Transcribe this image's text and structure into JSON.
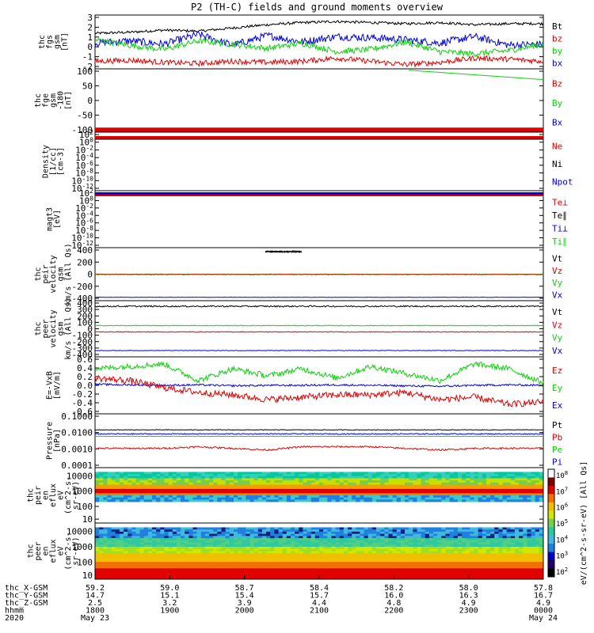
{
  "title": "P2 (TH-C) fields and ground moments overview",
  "colors": {
    "black": "#000000",
    "red": "#e00000",
    "green": "#10d010",
    "blue": "#0000e0",
    "grey": "#666666"
  },
  "chart_data": [
    {
      "type": "line",
      "id": "fgs",
      "ylabel": [
        "thc",
        "fgs",
        "gsm",
        "[nT]"
      ],
      "ylim": [
        -2,
        3
      ],
      "yticks": [
        "3",
        "2",
        "1",
        "0",
        "-1",
        "-2"
      ],
      "legend": [
        {
          "name": "Bt",
          "color": "#000000"
        },
        {
          "name": "bz",
          "color": "#e00000"
        },
        {
          "name": "by",
          "color": "#10d010"
        },
        {
          "name": "bx",
          "color": "#0000e0"
        }
      ],
      "series": [
        {
          "name": "Bt",
          "color": "#000000",
          "base": [
            1.3,
            1.4,
            1.6,
            1.5,
            1.8,
            2.1,
            2.3,
            2.4,
            2.3,
            2.2,
            2.3,
            2.1,
            2.2,
            2.2
          ],
          "noise": 0.12
        },
        {
          "name": "bx",
          "color": "#0000e0",
          "base": [
            0.4,
            0.6,
            0.3,
            1.2,
            0.2,
            1.1,
            0.5,
            1.0,
            0.9,
            0.7,
            0.4,
            1.0,
            0.2,
            0.3
          ],
          "noise": 0.35
        },
        {
          "name": "by",
          "color": "#10d010",
          "base": [
            0.7,
            0.2,
            -0.2,
            0.6,
            0.3,
            -0.1,
            0.4,
            -0.4,
            -0.2,
            0.5,
            -0.4,
            -0.6,
            -0.3,
            0.3
          ],
          "noise": 0.28
        },
        {
          "name": "bz",
          "color": "#e00000",
          "base": [
            -1.3,
            -1.2,
            -1.4,
            -1.5,
            -1.3,
            -1.4,
            -1.3,
            -1.0,
            -1.3,
            -1.6,
            -1.4,
            -1.0,
            -1.1,
            -1.3
          ],
          "noise": 0.25
        }
      ]
    },
    {
      "type": "line",
      "id": "fge",
      "ylabel": [
        "thc",
        "fge",
        "gsm",
        "-180",
        "[nT]"
      ],
      "ylim": [
        -130,
        105
      ],
      "yticks": [
        "100",
        "50",
        "0",
        "-50",
        "-100"
      ],
      "legend": [
        {
          "name": "Bz",
          "color": "#e00000"
        },
        {
          "name": "By",
          "color": "#10d010"
        },
        {
          "name": "Bx",
          "color": "#0000e0"
        }
      ],
      "series": [
        {
          "name": "By",
          "color": "#10d010",
          "x": [
            0.7,
            1.0
          ],
          "y": [
            100,
            65
          ]
        },
        {
          "name": "Bz",
          "color": "#e00000",
          "x": [
            0.0,
            1.0
          ],
          "y": [
            -122,
            -122
          ],
          "band": 6
        }
      ]
    },
    {
      "type": "line",
      "id": "density",
      "log": true,
      "ylabel": [
        "Density",
        "[1/cc]",
        "[cm-3]"
      ],
      "yticks": [
        "10^2",
        "10^0",
        "10^-2",
        "10^-4",
        "10^-6",
        "10^-8",
        "10^-10",
        "10^-12"
      ],
      "legend": [
        {
          "name": "Ne",
          "color": "#e00000"
        },
        {
          "name": "Ni",
          "color": "#000000"
        },
        {
          "name": "Npot",
          "color": "#0000e0"
        }
      ]
    },
    {
      "type": "line",
      "id": "temp",
      "log": true,
      "ylabel": [
        "magt3",
        "[eV]"
      ],
      "yticks": [
        "10^2",
        "10^0",
        "10^-2",
        "10^-4",
        "10^-6",
        "10^-8",
        "10^-10",
        "10^-12"
      ],
      "legend": [
        {
          "name": "Te⊥",
          "color": "#e00000"
        },
        {
          "name": "Te∥",
          "color": "#000000"
        },
        {
          "name": "Ti⊥",
          "color": "#0000e0"
        },
        {
          "name": "Ti∥",
          "color": "#10d010"
        }
      ]
    },
    {
      "type": "line",
      "id": "peir",
      "ylabel": [
        "thc",
        "peir",
        "velocity",
        "gsm",
        "km/s (All Qs)"
      ],
      "ylim": [
        -430,
        430
      ],
      "yticks": [
        "400",
        "200",
        "0",
        "-200",
        "-400"
      ],
      "legend": [
        {
          "name": "Vt",
          "color": "#000000"
        },
        {
          "name": "Vz",
          "color": "#e00000"
        },
        {
          "name": "Vy",
          "color": "#10d010"
        },
        {
          "name": "Vx",
          "color": "#0000e0"
        }
      ],
      "series": [
        {
          "name": "Vt",
          "color": "#000000",
          "base": [
            365,
            365
          ],
          "x": [
            0.38,
            0.46
          ],
          "noise": 4
        },
        {
          "name": "Vy",
          "color": "#10d010",
          "base": [
            0,
            0
          ],
          "noise": 3
        },
        {
          "name": "Vz",
          "color": "#e00000",
          "base": [
            -5,
            -5
          ],
          "noise": 4
        },
        {
          "name": "Vx",
          "color": "#0000e0",
          "base": [
            -375,
            -375
          ],
          "noise": 3
        }
      ]
    },
    {
      "type": "line",
      "id": "peer",
      "ylabel": [
        "thc",
        "peer",
        "velocity",
        "gsm",
        "km/s (All Qs)"
      ],
      "ylim": [
        -400,
        400
      ],
      "yticks": [
        "400",
        "300",
        "200",
        "100",
        "0",
        "-100",
        "-200",
        "-300",
        "-400"
      ],
      "legend": [
        {
          "name": "Vt",
          "color": "#000000"
        },
        {
          "name": "Vz",
          "color": "#e00000"
        },
        {
          "name": "Vy",
          "color": "#10d010"
        },
        {
          "name": "Vx",
          "color": "#0000e0"
        }
      ],
      "series": [
        {
          "name": "Vt",
          "color": "#000000",
          "base": [
            320,
            320
          ],
          "noise": 10
        },
        {
          "name": "Vy",
          "color": "#10d010",
          "base": [
            45,
            45
          ],
          "noise": 5
        },
        {
          "name": "Vz",
          "color": "#e00000",
          "base": [
            -45,
            -45
          ],
          "noise": 5
        },
        {
          "name": "Vx",
          "color": "#0000e0",
          "base": [
            -310,
            -310
          ],
          "noise": 4
        }
      ]
    },
    {
      "type": "line",
      "id": "efield",
      "ylabel": [
        "E=-VxB",
        "[mV/m]"
      ],
      "ylim": [
        -0.6,
        0.6
      ],
      "yticks": [
        "0.6",
        "0.4",
        "0.2",
        "0.0",
        "-0.2",
        "-0.4",
        "-0.6"
      ],
      "legend": [
        {
          "name": "Ez",
          "color": "#e00000"
        },
        {
          "name": "Ey",
          "color": "#10d010"
        },
        {
          "name": "Ex",
          "color": "#0000e0"
        }
      ],
      "series": [
        {
          "name": "Ex",
          "color": "#0000e0",
          "base": [
            0.02,
            0.01,
            0.0,
            0.01,
            -0.01,
            0.0,
            0.0,
            0.01,
            0.0,
            -0.01,
            -0.02,
            0.0,
            0.01,
            0.0
          ],
          "noise": 0.02
        },
        {
          "name": "Ey",
          "color": "#10d010",
          "base": [
            0.35,
            0.4,
            0.45,
            0.1,
            0.35,
            0.2,
            0.35,
            0.15,
            0.4,
            0.25,
            0.1,
            0.45,
            0.35,
            0.05
          ],
          "noise": 0.06
        },
        {
          "name": "Ez",
          "color": "#e00000",
          "base": [
            0.15,
            0.1,
            -0.05,
            -0.15,
            -0.2,
            -0.3,
            -0.25,
            -0.2,
            -0.2,
            -0.15,
            -0.3,
            -0.25,
            -0.4,
            -0.35
          ],
          "noise": 0.07
        }
      ]
    },
    {
      "type": "line",
      "id": "pressure",
      "log": true,
      "ylabel": [
        "Pressure",
        "[nPa]"
      ],
      "ylim_log": [
        -4.2,
        -0.85
      ],
      "yticks": [
        "0.1000",
        "0.0100",
        "0.0010",
        "0.0001"
      ],
      "legend": [
        {
          "name": "Pt",
          "color": "#000000"
        },
        {
          "name": "Pb",
          "color": "#e00000"
        },
        {
          "name": "Pe",
          "color": "#10d010"
        },
        {
          "name": "Pi",
          "color": "#0000e0"
        }
      ],
      "series": [
        {
          "name": "Pt",
          "color": "#000000",
          "base": [
            -1.85,
            -1.85
          ],
          "noise": 0.02
        },
        {
          "name": "Pi",
          "color": "#0000e0",
          "base": [
            -2.1,
            -2.1
          ],
          "noise": 0.03
        },
        {
          "name": "Pe",
          "color": "#10d010",
          "base": [
            -2.25,
            -2.25
          ],
          "noise": 0.01
        },
        {
          "name": "Pb",
          "color": "#e00000",
          "base": [
            -3.0,
            -3.0,
            -3.0,
            -2.9,
            -3.0,
            -3.1,
            -2.9,
            -2.9,
            -2.9,
            -3.0,
            -3.1,
            -3.0,
            -3.0,
            -3.0
          ],
          "noise": 0.05
        }
      ]
    },
    {
      "type": "heatmap",
      "id": "peir_en",
      "ylabel": [
        "thc",
        "peir",
        "en",
        "eflux",
        "eV",
        "(cm^2-s-",
        "sr-eV)"
      ],
      "yticks": [
        "10000",
        "1000",
        "100",
        "10"
      ]
    },
    {
      "type": "heatmap",
      "id": "peer_en",
      "ylabel": [
        "thc",
        "peer",
        "en",
        "eflux",
        "eV",
        "(cm^2-s-",
        "sr-eV)"
      ],
      "yticks": [
        "10000",
        "1000",
        "100",
        "10"
      ]
    }
  ],
  "colorbar": {
    "ticks": [
      "10^8",
      "10^7",
      "10^6",
      "10^5",
      "10^4",
      "10^3",
      "10^2"
    ],
    "label": "eV/(cm^2-s-sr-eV) [All Qs]"
  },
  "xaxis": {
    "rows": [
      {
        "label": "thc_X-GSM",
        "values": [
          "59.2",
          "59.0",
          "58.7",
          "58.4",
          "58.2",
          "58.0",
          "57.8"
        ]
      },
      {
        "label": "thc_Y-GSM",
        "values": [
          "14.7",
          "15.1",
          "15.4",
          "15.7",
          "16.0",
          "16.3",
          "16.7"
        ]
      },
      {
        "label": "thc_Z-GSM",
        "values": [
          "2.5",
          "3.2",
          "3.9",
          "4.4",
          "4.8",
          "4.9",
          "4.9"
        ]
      },
      {
        "label": "hhmm",
        "values": [
          "1800",
          "1900",
          "2000",
          "2100",
          "2200",
          "2300",
          "0000"
        ]
      },
      {
        "label": "2020",
        "values": [
          "May 23",
          "",
          "",
          "",
          "",
          "",
          "May 24"
        ]
      }
    ]
  }
}
